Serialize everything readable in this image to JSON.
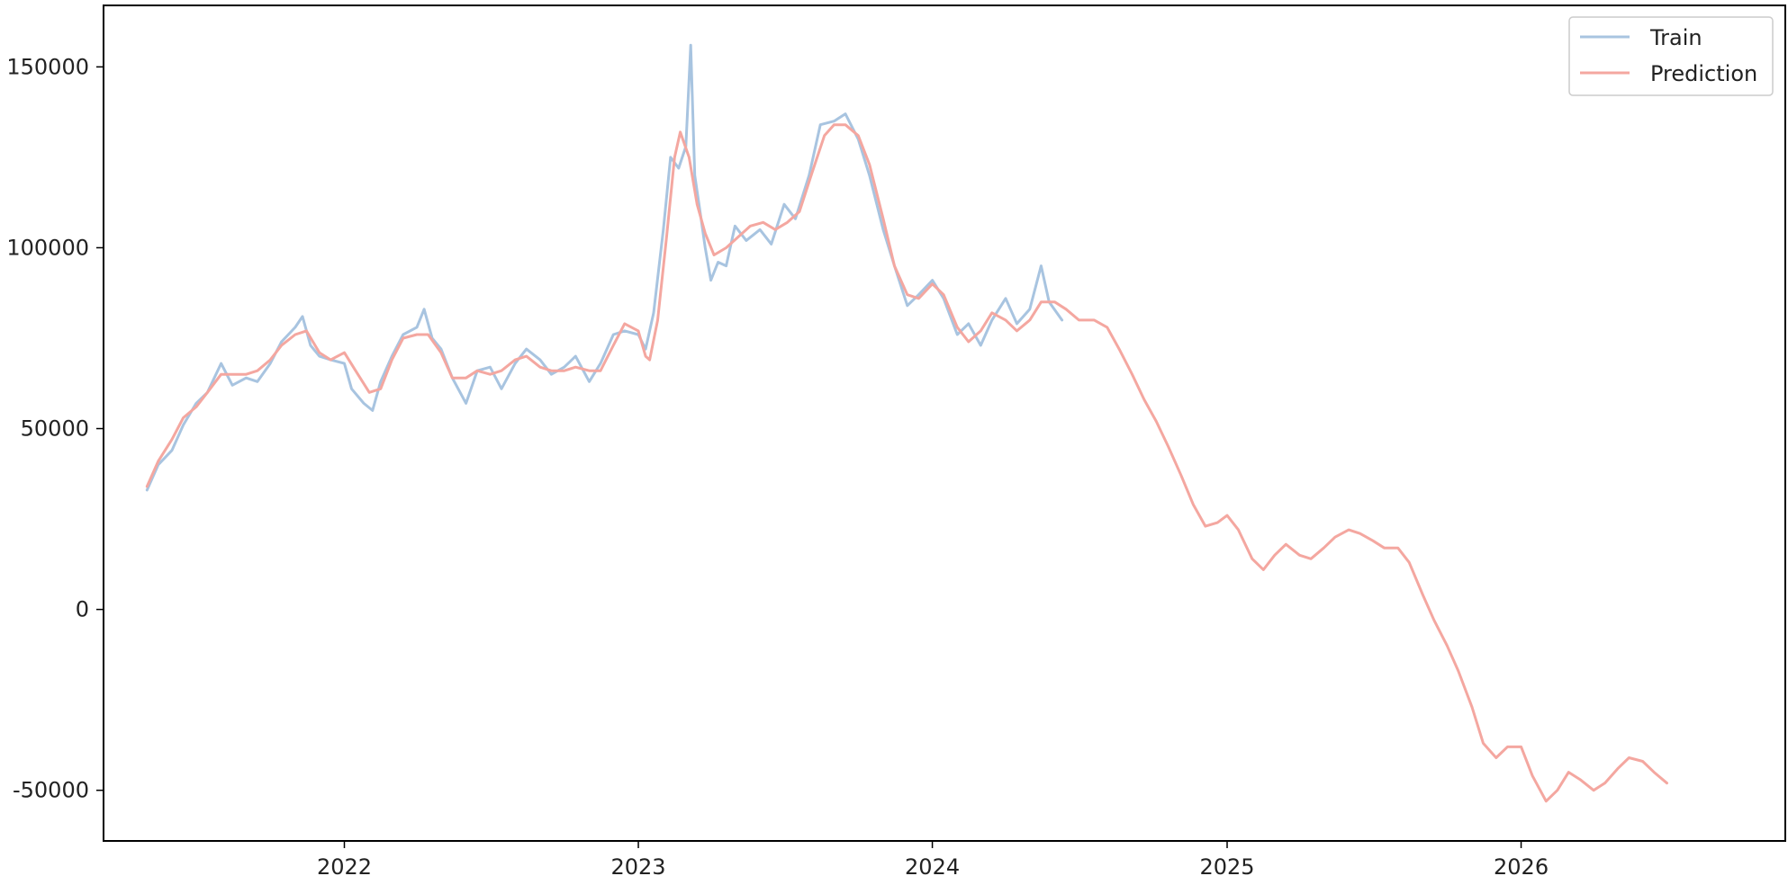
{
  "chart_data": {
    "type": "line",
    "title": "",
    "xlabel": "",
    "ylabel": "",
    "xlim": [
      "2021-03-08",
      "2026-11-25"
    ],
    "ylim": [
      -64000,
      167000
    ],
    "x_ticks": [
      "2022",
      "2023",
      "2024",
      "2025",
      "2026"
    ],
    "x_tick_dates": [
      "2022-01-01",
      "2023-01-01",
      "2024-01-01",
      "2025-01-01",
      "2026-01-01"
    ],
    "y_ticks": [
      -50000,
      0,
      50000,
      100000,
      150000
    ],
    "y_tick_labels": [
      "-50000",
      "0",
      "50000",
      "100000",
      "150000"
    ],
    "grid": false,
    "legend_position": "top-right",
    "series": [
      {
        "name": "Train",
        "color": "#a8c4e0",
        "points": [
          [
            "2021-05-01",
            33000
          ],
          [
            "2021-05-15",
            40000
          ],
          [
            "2021-06-01",
            44000
          ],
          [
            "2021-06-15",
            51000
          ],
          [
            "2021-07-01",
            57000
          ],
          [
            "2021-07-15",
            60000
          ],
          [
            "2021-08-01",
            68000
          ],
          [
            "2021-08-15",
            62000
          ],
          [
            "2021-09-01",
            64000
          ],
          [
            "2021-09-15",
            63000
          ],
          [
            "2021-10-01",
            68000
          ],
          [
            "2021-10-15",
            74000
          ],
          [
            "2021-11-01",
            78000
          ],
          [
            "2021-11-10",
            81000
          ],
          [
            "2021-11-20",
            73000
          ],
          [
            "2021-12-01",
            70000
          ],
          [
            "2021-12-15",
            69000
          ],
          [
            "2022-01-01",
            68000
          ],
          [
            "2022-01-10",
            61000
          ],
          [
            "2022-01-25",
            57000
          ],
          [
            "2022-02-05",
            55000
          ],
          [
            "2022-02-15",
            63000
          ],
          [
            "2022-03-01",
            70000
          ],
          [
            "2022-03-15",
            76000
          ],
          [
            "2022-04-01",
            78000
          ],
          [
            "2022-04-10",
            83000
          ],
          [
            "2022-04-20",
            75000
          ],
          [
            "2022-05-01",
            72000
          ],
          [
            "2022-05-15",
            64000
          ],
          [
            "2022-06-01",
            57000
          ],
          [
            "2022-06-15",
            66000
          ],
          [
            "2022-07-01",
            67000
          ],
          [
            "2022-07-15",
            61000
          ],
          [
            "2022-08-01",
            68000
          ],
          [
            "2022-08-15",
            72000
          ],
          [
            "2022-09-01",
            69000
          ],
          [
            "2022-09-15",
            65000
          ],
          [
            "2022-10-01",
            67000
          ],
          [
            "2022-10-15",
            70000
          ],
          [
            "2022-11-01",
            63000
          ],
          [
            "2022-11-15",
            68000
          ],
          [
            "2022-12-01",
            76000
          ],
          [
            "2022-12-15",
            77000
          ],
          [
            "2023-01-01",
            76000
          ],
          [
            "2023-01-10",
            72000
          ],
          [
            "2023-01-20",
            82000
          ],
          [
            "2023-02-01",
            105000
          ],
          [
            "2023-02-10",
            125000
          ],
          [
            "2023-02-20",
            122000
          ],
          [
            "2023-03-01",
            128000
          ],
          [
            "2023-03-07",
            156000
          ],
          [
            "2023-03-12",
            120000
          ],
          [
            "2023-03-18",
            111000
          ],
          [
            "2023-03-25",
            100000
          ],
          [
            "2023-04-01",
            91000
          ],
          [
            "2023-04-10",
            96000
          ],
          [
            "2023-04-20",
            95000
          ],
          [
            "2023-05-01",
            106000
          ],
          [
            "2023-05-15",
            102000
          ],
          [
            "2023-06-01",
            105000
          ],
          [
            "2023-06-15",
            101000
          ],
          [
            "2023-07-01",
            112000
          ],
          [
            "2023-07-15",
            108000
          ],
          [
            "2023-08-01",
            120000
          ],
          [
            "2023-08-15",
            134000
          ],
          [
            "2023-09-01",
            135000
          ],
          [
            "2023-09-15",
            137000
          ],
          [
            "2023-10-01",
            130000
          ],
          [
            "2023-10-15",
            120000
          ],
          [
            "2023-11-01",
            105000
          ],
          [
            "2023-11-15",
            95000
          ],
          [
            "2023-12-01",
            84000
          ],
          [
            "2023-12-15",
            87000
          ],
          [
            "2024-01-01",
            91000
          ],
          [
            "2024-01-15",
            86000
          ],
          [
            "2024-02-01",
            76000
          ],
          [
            "2024-02-15",
            79000
          ],
          [
            "2024-03-01",
            73000
          ],
          [
            "2024-03-15",
            80000
          ],
          [
            "2024-04-01",
            86000
          ],
          [
            "2024-04-15",
            79000
          ],
          [
            "2024-05-01",
            83000
          ],
          [
            "2024-05-15",
            95000
          ],
          [
            "2024-05-25",
            85000
          ],
          [
            "2024-06-10",
            80000
          ]
        ]
      },
      {
        "name": "Prediction",
        "color": "#f4a7a0",
        "points": [
          [
            "2021-05-01",
            34000
          ],
          [
            "2021-05-15",
            41000
          ],
          [
            "2021-06-01",
            47000
          ],
          [
            "2021-06-15",
            53000
          ],
          [
            "2021-07-01",
            56000
          ],
          [
            "2021-07-15",
            60000
          ],
          [
            "2021-08-01",
            65000
          ],
          [
            "2021-08-15",
            65000
          ],
          [
            "2021-09-01",
            65000
          ],
          [
            "2021-09-15",
            66000
          ],
          [
            "2021-10-01",
            69000
          ],
          [
            "2021-10-15",
            73000
          ],
          [
            "2021-11-01",
            76000
          ],
          [
            "2021-11-15",
            77000
          ],
          [
            "2021-12-01",
            71000
          ],
          [
            "2021-12-15",
            69000
          ],
          [
            "2022-01-01",
            71000
          ],
          [
            "2022-01-15",
            66000
          ],
          [
            "2022-02-01",
            60000
          ],
          [
            "2022-02-15",
            61000
          ],
          [
            "2022-03-01",
            69000
          ],
          [
            "2022-03-15",
            75000
          ],
          [
            "2022-04-01",
            76000
          ],
          [
            "2022-04-15",
            76000
          ],
          [
            "2022-05-01",
            71000
          ],
          [
            "2022-05-15",
            64000
          ],
          [
            "2022-06-01",
            64000
          ],
          [
            "2022-06-15",
            66000
          ],
          [
            "2022-07-01",
            65000
          ],
          [
            "2022-07-15",
            66000
          ],
          [
            "2022-08-01",
            69000
          ],
          [
            "2022-08-15",
            70000
          ],
          [
            "2022-09-01",
            67000
          ],
          [
            "2022-09-15",
            66000
          ],
          [
            "2022-10-01",
            66000
          ],
          [
            "2022-10-15",
            67000
          ],
          [
            "2022-11-01",
            66000
          ],
          [
            "2022-11-15",
            66000
          ],
          [
            "2022-12-01",
            73000
          ],
          [
            "2022-12-15",
            79000
          ],
          [
            "2023-01-01",
            77000
          ],
          [
            "2023-01-10",
            70000
          ],
          [
            "2023-01-15",
            69000
          ],
          [
            "2023-01-25",
            80000
          ],
          [
            "2023-02-05",
            103000
          ],
          [
            "2023-02-15",
            125000
          ],
          [
            "2023-02-22",
            132000
          ],
          [
            "2023-03-05",
            125000
          ],
          [
            "2023-03-15",
            112000
          ],
          [
            "2023-03-25",
            104000
          ],
          [
            "2023-04-05",
            98000
          ],
          [
            "2023-04-20",
            100000
          ],
          [
            "2023-05-05",
            103000
          ],
          [
            "2023-05-20",
            106000
          ],
          [
            "2023-06-05",
            107000
          ],
          [
            "2023-06-20",
            105000
          ],
          [
            "2023-07-05",
            107000
          ],
          [
            "2023-07-20",
            110000
          ],
          [
            "2023-08-05",
            121000
          ],
          [
            "2023-08-20",
            131000
          ],
          [
            "2023-09-01",
            134000
          ],
          [
            "2023-09-15",
            134000
          ],
          [
            "2023-10-01",
            131000
          ],
          [
            "2023-10-15",
            123000
          ],
          [
            "2023-11-01",
            108000
          ],
          [
            "2023-11-15",
            95000
          ],
          [
            "2023-12-01",
            87000
          ],
          [
            "2023-12-15",
            86000
          ],
          [
            "2024-01-01",
            90000
          ],
          [
            "2024-01-15",
            87000
          ],
          [
            "2024-02-01",
            78000
          ],
          [
            "2024-02-15",
            74000
          ],
          [
            "2024-03-01",
            77000
          ],
          [
            "2024-03-15",
            82000
          ],
          [
            "2024-04-01",
            80000
          ],
          [
            "2024-04-15",
            77000
          ],
          [
            "2024-05-01",
            80000
          ],
          [
            "2024-05-15",
            85000
          ],
          [
            "2024-06-01",
            85000
          ],
          [
            "2024-06-15",
            83000
          ],
          [
            "2024-07-01",
            80000
          ],
          [
            "2024-07-20",
            80000
          ],
          [
            "2024-08-05",
            78000
          ],
          [
            "2024-08-20",
            72000
          ],
          [
            "2024-09-05",
            65000
          ],
          [
            "2024-09-20",
            58000
          ],
          [
            "2024-10-05",
            52000
          ],
          [
            "2024-10-20",
            45000
          ],
          [
            "2024-11-05",
            37000
          ],
          [
            "2024-11-20",
            29000
          ],
          [
            "2024-12-05",
            23000
          ],
          [
            "2024-12-20",
            24000
          ],
          [
            "2025-01-01",
            26000
          ],
          [
            "2025-01-15",
            22000
          ],
          [
            "2025-02-01",
            14000
          ],
          [
            "2025-02-15",
            11000
          ],
          [
            "2025-03-01",
            15000
          ],
          [
            "2025-03-15",
            18000
          ],
          [
            "2025-04-01",
            15000
          ],
          [
            "2025-04-15",
            14000
          ],
          [
            "2025-05-01",
            17000
          ],
          [
            "2025-05-15",
            20000
          ],
          [
            "2025-06-01",
            22000
          ],
          [
            "2025-06-15",
            21000
          ],
          [
            "2025-07-01",
            19000
          ],
          [
            "2025-07-15",
            17000
          ],
          [
            "2025-08-01",
            17000
          ],
          [
            "2025-08-15",
            13000
          ],
          [
            "2025-09-01",
            4000
          ],
          [
            "2025-09-15",
            -3000
          ],
          [
            "2025-10-01",
            -10000
          ],
          [
            "2025-10-15",
            -17000
          ],
          [
            "2025-11-01",
            -27000
          ],
          [
            "2025-11-15",
            -37000
          ],
          [
            "2025-12-01",
            -41000
          ],
          [
            "2025-12-15",
            -38000
          ],
          [
            "2026-01-01",
            -38000
          ],
          [
            "2026-01-15",
            -46000
          ],
          [
            "2026-02-01",
            -53000
          ],
          [
            "2026-02-15",
            -50000
          ],
          [
            "2026-03-01",
            -45000
          ],
          [
            "2026-03-15",
            -47000
          ],
          [
            "2026-04-01",
            -50000
          ],
          [
            "2026-04-15",
            -48000
          ],
          [
            "2026-05-01",
            -44000
          ],
          [
            "2026-05-15",
            -41000
          ],
          [
            "2026-06-01",
            -42000
          ],
          [
            "2026-06-15",
            -45000
          ],
          [
            "2026-07-01",
            -48000
          ]
        ]
      }
    ]
  }
}
